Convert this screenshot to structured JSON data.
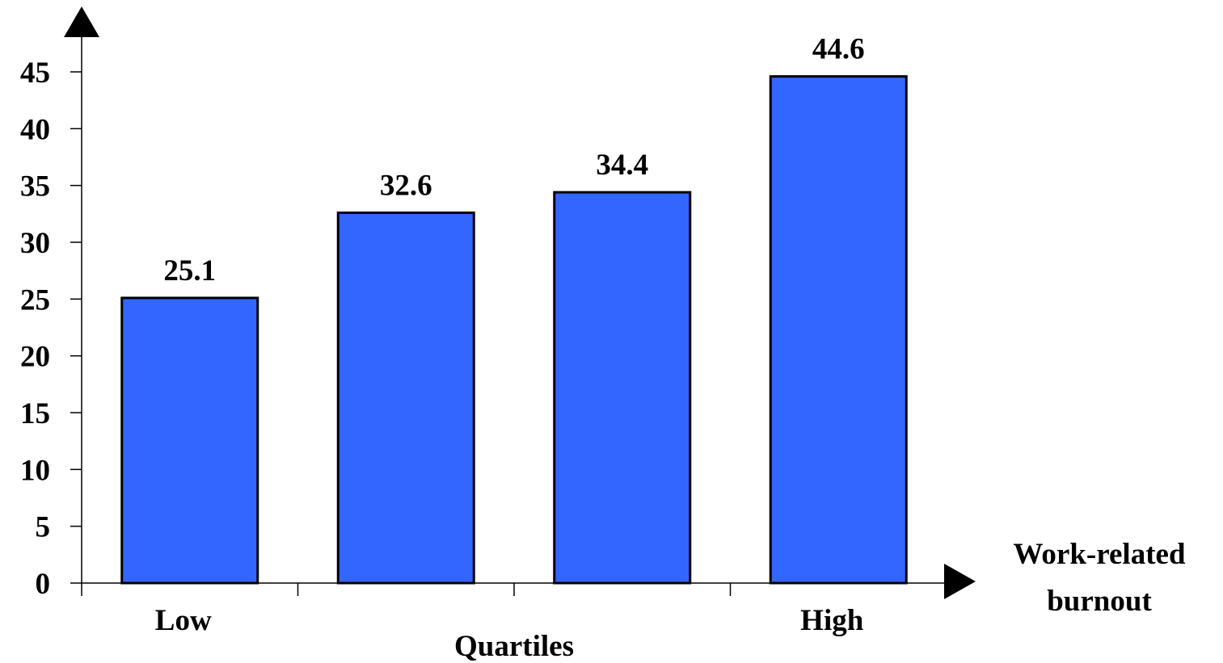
{
  "chart_data": {
    "type": "bar",
    "categories": [
      "Low",
      "",
      "",
      "High"
    ],
    "values": [
      25.1,
      32.6,
      34.4,
      44.6
    ],
    "value_labels": [
      "25.1",
      "32.6",
      "34.4",
      "44.6"
    ],
    "title": "",
    "xlabel": "Quartiles",
    "x_axis_end_label": [
      "Work-related",
      "burnout"
    ],
    "ylabel": "",
    "ylim": [
      0,
      45
    ],
    "yticks": [
      0,
      5,
      10,
      15,
      20,
      25,
      30,
      35,
      40,
      45
    ],
    "grid": false,
    "legend": "none",
    "colors": {
      "bar": "#3366FF",
      "bar_outline": "#000000",
      "axis": "#000000"
    }
  }
}
